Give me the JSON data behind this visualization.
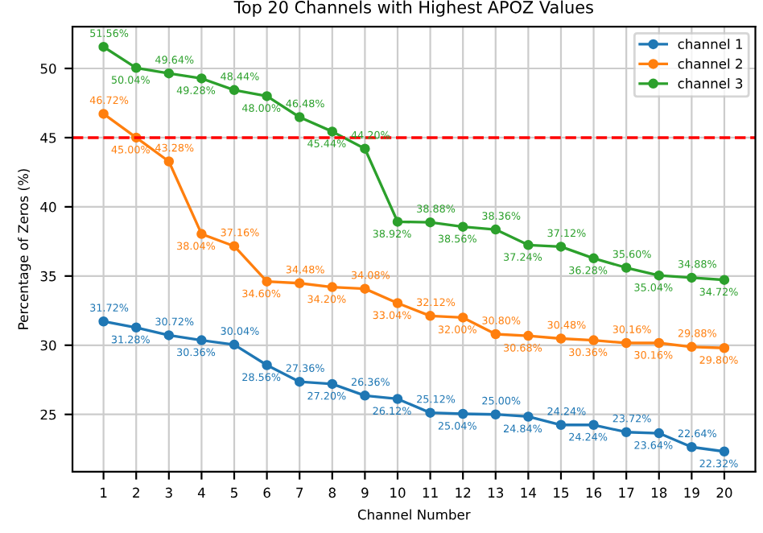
{
  "chart_data": {
    "type": "line",
    "title": "Top 20 Channels with Highest APOZ Values",
    "xlabel": "Channel Number",
    "ylabel": "Percentage of Zeros (%)",
    "x": [
      1,
      2,
      3,
      4,
      5,
      6,
      7,
      8,
      9,
      10,
      11,
      12,
      13,
      14,
      15,
      16,
      17,
      18,
      19,
      20
    ],
    "series": [
      {
        "name": "channel 1",
        "color": "#1f77b4",
        "values": [
          31.72,
          31.28,
          30.72,
          30.36,
          30.04,
          28.56,
          27.36,
          27.2,
          26.36,
          26.12,
          25.12,
          25.04,
          25.0,
          24.84,
          24.24,
          24.24,
          23.72,
          23.64,
          22.64,
          22.32
        ],
        "value_labels": [
          "31.72%",
          "31.28%",
          "30.72%",
          "30.36%",
          "30.04%",
          "28.56%",
          "27.36%",
          "27.20%",
          "26.36%",
          "26.12%",
          "25.12%",
          "25.04%",
          "25.00%",
          "24.84%",
          "24.24%",
          "24.24%",
          "23.72%",
          "23.64%",
          "22.64%",
          "22.32%"
        ]
      },
      {
        "name": "channel 2",
        "color": "#ff7f0e",
        "values": [
          46.72,
          45.0,
          43.28,
          38.04,
          37.16,
          34.6,
          34.48,
          34.2,
          34.08,
          33.04,
          32.12,
          32.0,
          30.8,
          30.68,
          30.48,
          30.36,
          30.16,
          30.16,
          29.88,
          29.8
        ],
        "value_labels": [
          "46.72%",
          "45.00%",
          "43.28%",
          "38.04%",
          "37.16%",
          "34.60%",
          "34.48%",
          "34.20%",
          "34.08%",
          "33.04%",
          "32.12%",
          "32.00%",
          "30.80%",
          "30.68%",
          "30.48%",
          "30.36%",
          "30.16%",
          "30.16%",
          "29.88%",
          "29.80%"
        ]
      },
      {
        "name": "channel 3",
        "color": "#2ca02c",
        "values": [
          51.56,
          50.04,
          49.64,
          49.28,
          48.44,
          48.0,
          46.48,
          45.44,
          44.2,
          38.92,
          38.88,
          38.56,
          38.36,
          37.24,
          37.12,
          36.28,
          35.6,
          35.04,
          34.88,
          34.72
        ],
        "value_labels": [
          "51.56%",
          "50.04%",
          "49.64%",
          "49.28%",
          "48.44%",
          "48.00%",
          "46.48%",
          "45.44%",
          "44.20%",
          "38.92%",
          "38.88%",
          "38.56%",
          "38.36%",
          "37.24%",
          "37.12%",
          "36.28%",
          "35.60%",
          "35.04%",
          "34.88%",
          "34.72%"
        ]
      }
    ],
    "xlim": [
      0.05,
      20.95
    ],
    "xticks": [
      1,
      2,
      3,
      4,
      5,
      6,
      7,
      8,
      9,
      10,
      11,
      12,
      13,
      14,
      15,
      16,
      17,
      18,
      19,
      20
    ],
    "ylim": [
      20.86,
      53.02
    ],
    "yticks": [
      25,
      30,
      35,
      40,
      45,
      50
    ],
    "ref_lines": [
      {
        "axis": "y",
        "value": 45,
        "color": "#ff0000",
        "line_style": "dashed"
      }
    ],
    "grid": true,
    "legend": "top right",
    "marker": "circle",
    "line_style": "solid"
  }
}
